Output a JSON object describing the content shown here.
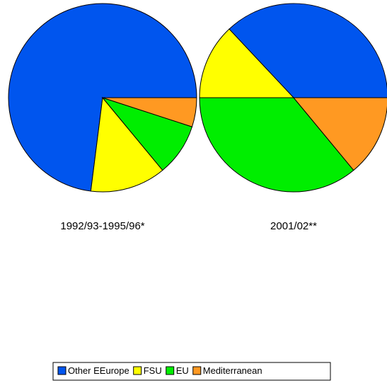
{
  "chart_data": [
    {
      "type": "pie",
      "title": "1992/93-1995/96*",
      "categories": [
        "Other EEurope",
        "FSU",
        "EU",
        "Mediterranean"
      ],
      "values": [
        73,
        13,
        9,
        5
      ],
      "colors": [
        "#0055ee",
        "#ffff00",
        "#00ee00",
        "#ff9922"
      ]
    },
    {
      "type": "pie",
      "title": "2001/02**",
      "categories": [
        "Other EEurope",
        "FSU",
        "EU",
        "Mediterranean"
      ],
      "values": [
        37,
        13,
        36,
        14
      ],
      "colors": [
        "#0055ee",
        "#ffff00",
        "#00ee00",
        "#ff9922"
      ]
    }
  ]
}
